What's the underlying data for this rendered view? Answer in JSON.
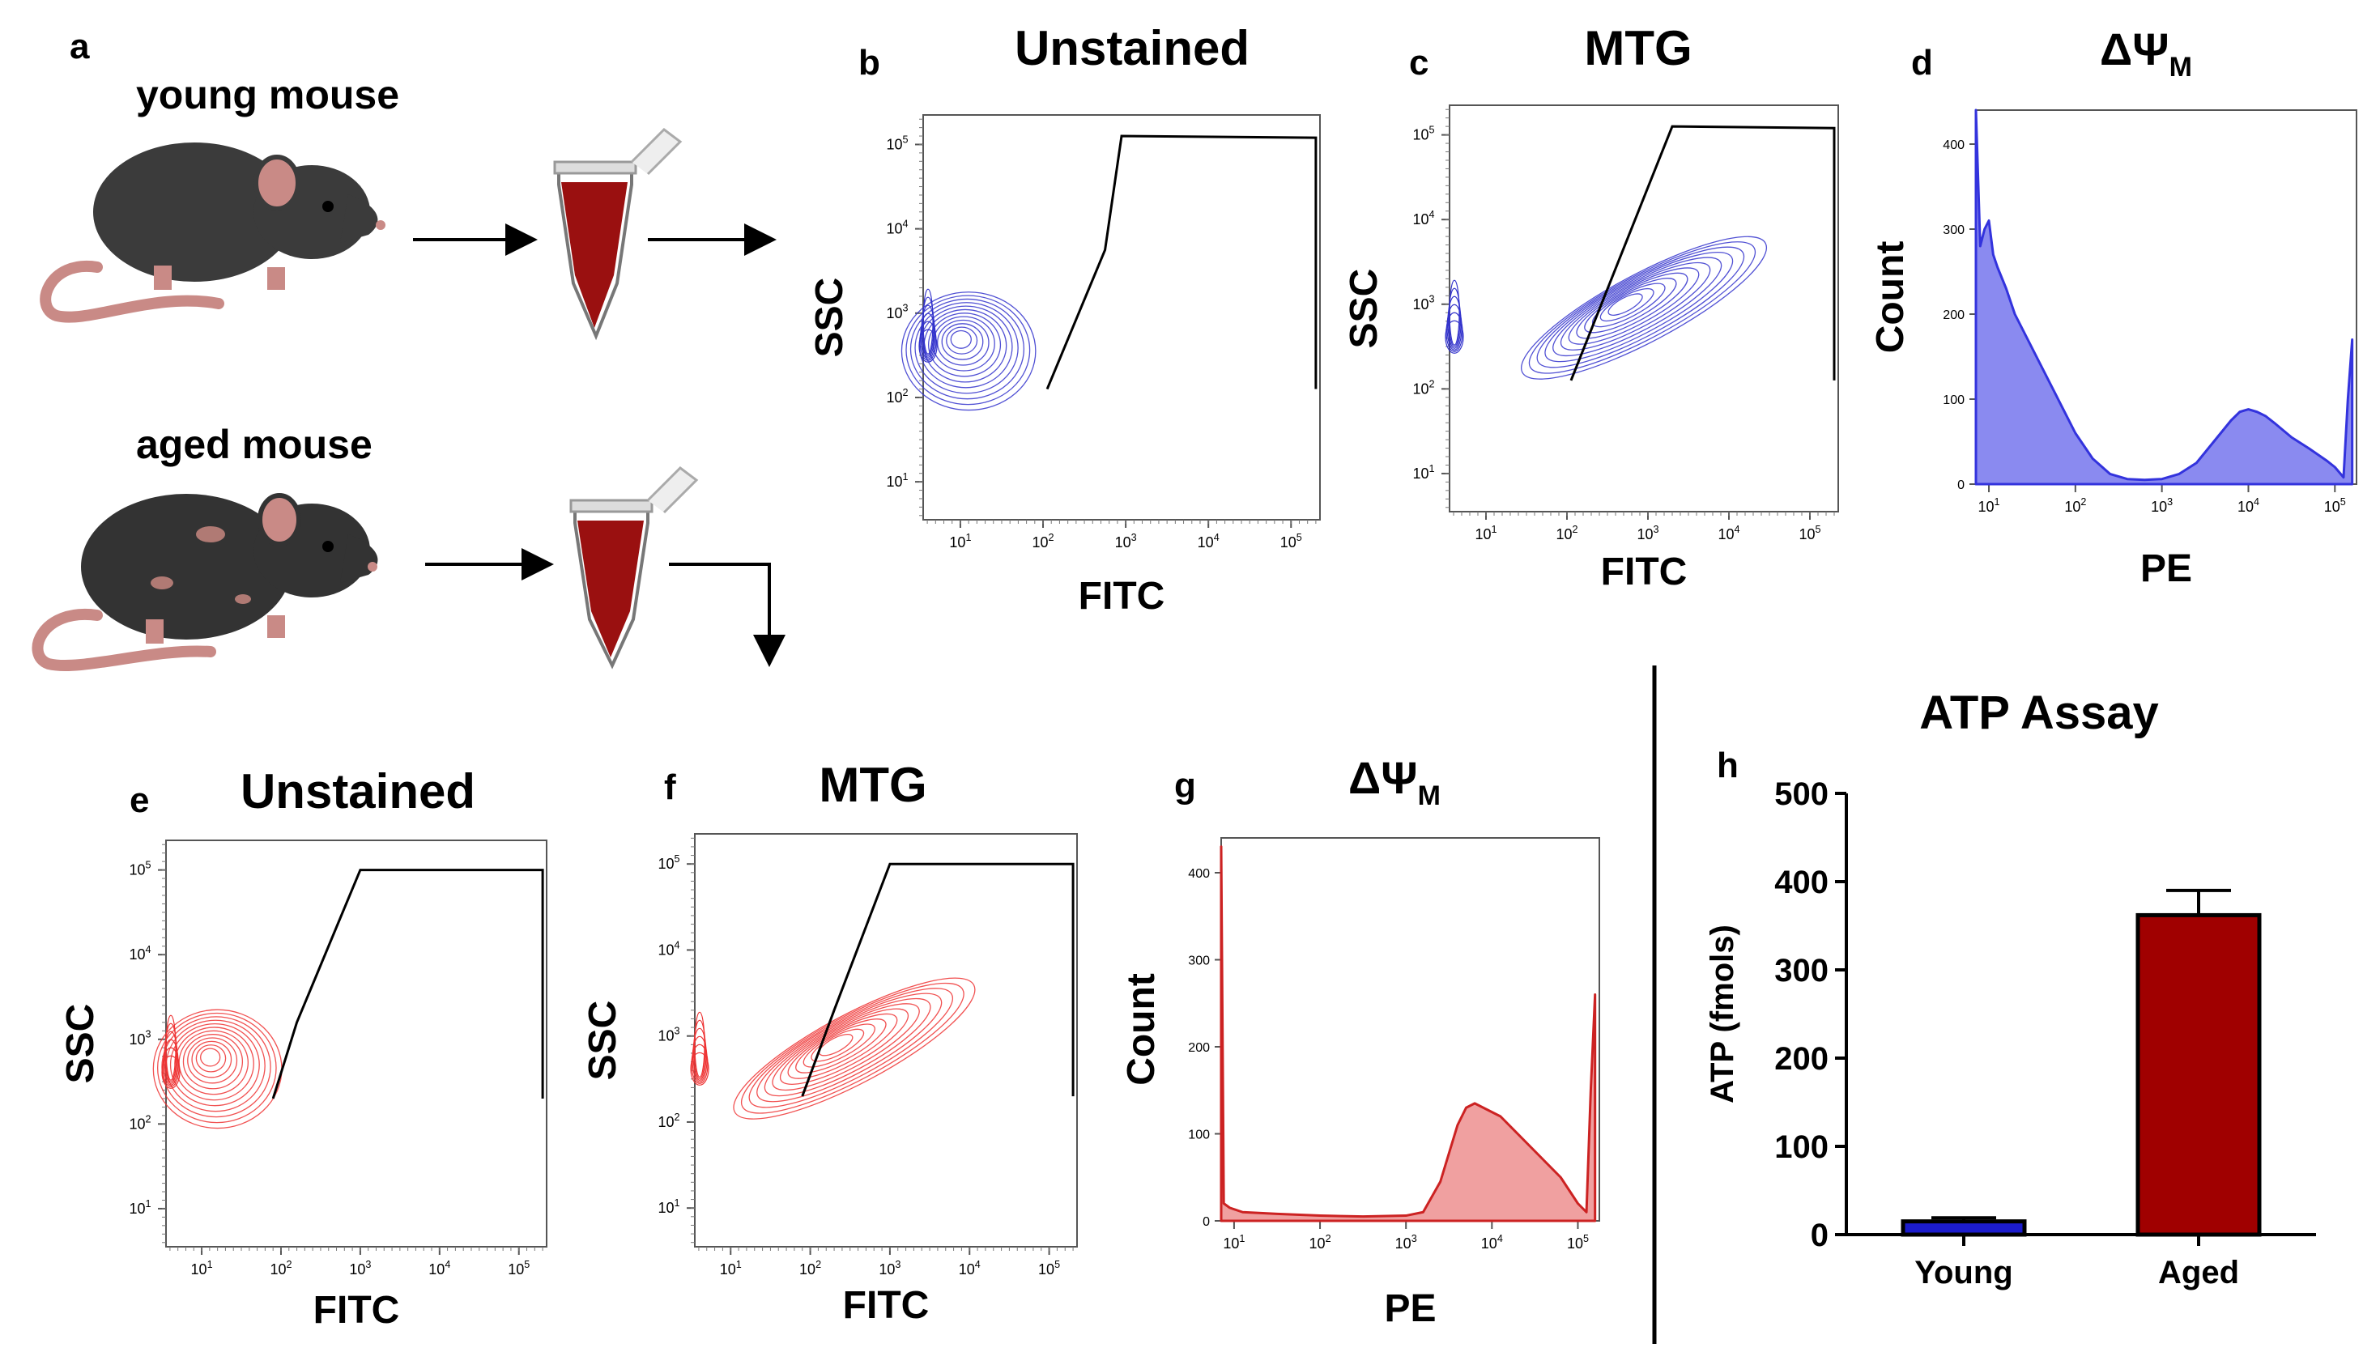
{
  "panel_a": {
    "letter": "a",
    "young_label": "young mouse",
    "aged_label": "aged mouse"
  },
  "chart_data": [
    {
      "id": "b",
      "type": "contour",
      "title": "Unstained",
      "xlabel": "FITC",
      "ylabel": "SSC",
      "x_ticks": [
        "10^1",
        "10^2",
        "10^3",
        "10^4",
        "10^5"
      ],
      "y_ticks": [
        "10^1",
        "10^2",
        "10^3",
        "10^4",
        "10^5"
      ],
      "color": "#3333cc",
      "population": {
        "x_center_log": 1.0,
        "y_center_log": 2.7
      },
      "gate_polygon_log": [
        [
          2.05,
          2.1
        ],
        [
          2.75,
          3.75
        ],
        [
          2.95,
          5.1
        ],
        [
          5.3,
          5.08
        ],
        [
          5.3,
          2.1
        ]
      ]
    },
    {
      "id": "c",
      "type": "contour",
      "title": "MTG",
      "xlabel": "FITC",
      "ylabel": "SSC",
      "x_ticks": [
        "10^1",
        "10^2",
        "10^3",
        "10^4",
        "10^5"
      ],
      "y_ticks": [
        "10^1",
        "10^2",
        "10^3",
        "10^4",
        "10^5"
      ],
      "color": "#3333cc",
      "population": {
        "x_center_log": 2.7,
        "y_center_log": 3.0
      },
      "gate_polygon_log": [
        [
          2.05,
          2.1
        ],
        [
          3.3,
          5.1
        ],
        [
          5.3,
          5.08
        ],
        [
          5.3,
          2.1
        ]
      ]
    },
    {
      "id": "d",
      "type": "histogram",
      "title": "ΔΨ",
      "title_sub": "M",
      "xlabel": "PE",
      "ylabel": "Count",
      "x_ticks": [
        "10^1",
        "10^2",
        "10^3",
        "10^4",
        "10^5"
      ],
      "y_ticks": [
        "0",
        "100",
        "200",
        "300",
        "400"
      ],
      "ylim": [
        0,
        440
      ],
      "color": "#3333dd",
      "fill": "#8a8af0",
      "x_log": [
        0.85,
        0.9,
        0.95,
        1.0,
        1.05,
        1.1,
        1.2,
        1.3,
        1.45,
        1.6,
        1.8,
        2.0,
        2.2,
        2.4,
        2.6,
        2.8,
        3.0,
        3.2,
        3.4,
        3.6,
        3.8,
        3.9,
        4.0,
        4.1,
        4.2,
        4.3,
        4.5,
        4.7,
        4.9,
        5.0,
        5.1,
        5.15,
        5.2
      ],
      "y_values": [
        440,
        280,
        300,
        310,
        270,
        255,
        230,
        200,
        170,
        140,
        100,
        60,
        30,
        12,
        6,
        5,
        6,
        12,
        25,
        50,
        75,
        85,
        88,
        85,
        80,
        72,
        55,
        42,
        28,
        20,
        8,
        100,
        170
      ]
    },
    {
      "id": "e",
      "type": "contour",
      "title": "Unstained",
      "xlabel": "FITC",
      "ylabel": "SSC",
      "x_ticks": [
        "10^1",
        "10^2",
        "10^3",
        "10^4",
        "10^5"
      ],
      "y_ticks": [
        "10^1",
        "10^2",
        "10^3",
        "10^4",
        "10^5"
      ],
      "color": "#ee3333",
      "population": {
        "x_center_log": 1.1,
        "y_center_log": 2.8
      },
      "gate_polygon_log": [
        [
          1.9,
          2.3
        ],
        [
          2.2,
          3.2
        ],
        [
          3.0,
          5.0
        ],
        [
          5.3,
          5.0
        ],
        [
          5.3,
          2.3
        ]
      ]
    },
    {
      "id": "f",
      "type": "contour",
      "title": "MTG",
      "xlabel": "FITC",
      "ylabel": "SSC",
      "x_ticks": [
        "10^1",
        "10^2",
        "10^3",
        "10^4",
        "10^5"
      ],
      "y_ticks": [
        "10^1",
        "10^2",
        "10^3",
        "10^4",
        "10^5"
      ],
      "color": "#ee3333",
      "population": {
        "x_center_log": 2.3,
        "y_center_log": 2.9
      },
      "gate_polygon_log": [
        [
          1.9,
          2.3
        ],
        [
          2.3,
          3.3
        ],
        [
          3.0,
          5.0
        ],
        [
          5.3,
          5.0
        ],
        [
          5.3,
          2.3
        ]
      ]
    },
    {
      "id": "g",
      "type": "histogram",
      "title": "ΔΨ",
      "title_sub": "M",
      "xlabel": "PE",
      "ylabel": "Count",
      "x_ticks": [
        "10^1",
        "10^2",
        "10^3",
        "10^4",
        "10^5"
      ],
      "y_ticks": [
        "0",
        "100",
        "200",
        "300",
        "400"
      ],
      "ylim": [
        0,
        440
      ],
      "color": "#cc2222",
      "fill": "#f0a0a0",
      "x_log": [
        0.85,
        0.88,
        0.95,
        1.1,
        1.5,
        2.0,
        2.5,
        3.0,
        3.2,
        3.4,
        3.6,
        3.7,
        3.8,
        3.9,
        4.0,
        4.1,
        4.2,
        4.4,
        4.6,
        4.8,
        4.9,
        5.0,
        5.1,
        5.15,
        5.2
      ],
      "y_values": [
        430,
        20,
        15,
        10,
        8,
        6,
        5,
        6,
        10,
        45,
        110,
        130,
        135,
        130,
        125,
        120,
        110,
        90,
        70,
        50,
        35,
        20,
        10,
        150,
        260
      ]
    },
    {
      "id": "h",
      "type": "bar",
      "title": "ATP Assay",
      "ylabel": "ATP (fmols)",
      "xlabel": "",
      "ylim": [
        0,
        500
      ],
      "y_ticks": [
        "0",
        "100",
        "200",
        "300",
        "400",
        "500"
      ],
      "categories": [
        "Young",
        "Aged"
      ],
      "values": [
        15,
        362
      ],
      "errors": [
        4,
        28
      ],
      "colors": [
        "#1c1ccc",
        "#a00000"
      ]
    }
  ]
}
